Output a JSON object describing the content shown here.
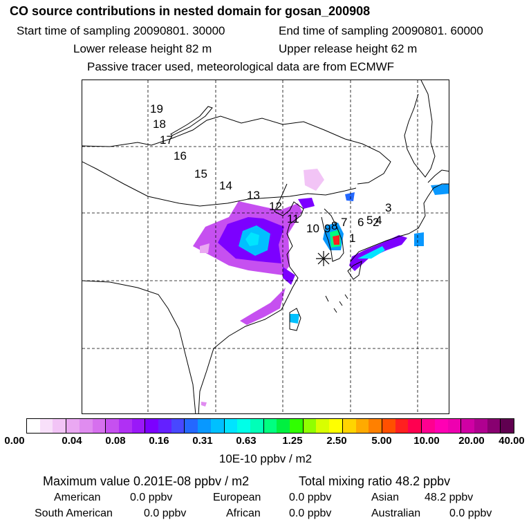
{
  "header": {
    "title": "CO  source contributions in nested domain for gosan_200908",
    "start_time": "Start time of sampling 20090801. 30000",
    "end_time": "End time of sampling 20090801. 60000",
    "lower_height": "Lower release height   82 m",
    "upper_height": "Upper release height   62 m",
    "tracer_note": "Passive tracer used, meteorological data are from ECMWF"
  },
  "map": {
    "trajectory_labels": [
      "1",
      "2",
      "3",
      "4",
      "5",
      "6",
      "7",
      "8",
      "9",
      "10",
      "11",
      "12",
      "13",
      "14",
      "15",
      "16",
      "17",
      "18",
      "19"
    ],
    "receptor_marker": "asterisk"
  },
  "legend": {
    "colors": [
      "#ffffff",
      "#f8e0fa",
      "#f2c4f6",
      "#eaa8f2",
      "#e08cf0",
      "#d670ee",
      "#c650f0",
      "#b030f4",
      "#9a18f8",
      "#7c00ff",
      "#6420ff",
      "#4848ff",
      "#2468ff",
      "#0898ff",
      "#00c0ff",
      "#00e4ff",
      "#00ffe8",
      "#00ffb8",
      "#00ff80",
      "#00f040",
      "#30ff00",
      "#90ff00",
      "#d8ff00",
      "#ffff00",
      "#ffd400",
      "#ffaa00",
      "#ff8000",
      "#ff5000",
      "#ff2020",
      "#ff0050",
      "#ff0090",
      "#ff00b4",
      "#ee00b0",
      "#d000a4",
      "#b00090",
      "#880070",
      "#600050"
    ],
    "ticks": [
      "0.00",
      "0.04",
      "0.08",
      "0.16",
      "0.31",
      "0.63",
      "1.25",
      "2.50",
      "5.00",
      "10.00",
      "20.00",
      "40.00"
    ],
    "unit": "10E-10 ppbv / m2"
  },
  "stats": {
    "max_value": "Maximum value  0.201E-08 ppbv / m2",
    "total_mixing": "Total mixing ratio       48.2 ppbv"
  },
  "regions": [
    {
      "name": "American",
      "value": "0.0 ppbv"
    },
    {
      "name": "European",
      "value": "0.0 ppbv"
    },
    {
      "name": "Asian",
      "value": "48.2 ppbv"
    },
    {
      "name": "South American",
      "value": "0.0 ppbv"
    },
    {
      "name": "African",
      "value": "0.0 ppbv"
    },
    {
      "name": "Australian",
      "value": "0.0 ppbv"
    }
  ]
}
